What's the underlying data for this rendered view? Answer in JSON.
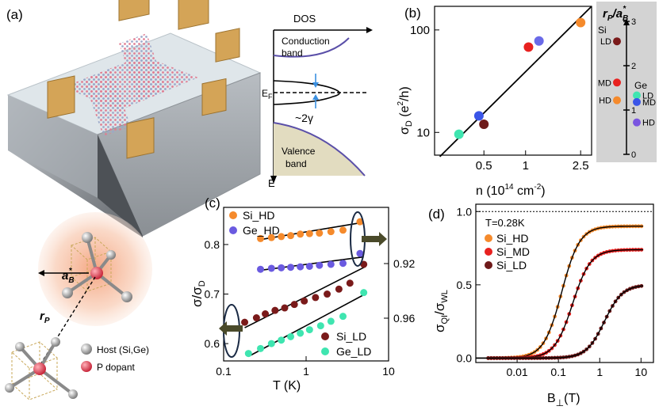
{
  "panel_labels": {
    "a": "(a)",
    "b": "(b)",
    "c": "(c)",
    "d": "(d)"
  },
  "dos": {
    "axis_dos": "DOS",
    "axis_e": "E",
    "conduction_1": "Conduction",
    "conduction_2": "band",
    "valence_1": "Valence",
    "valence_2": "band",
    "ef": "E",
    "ef_sub": "F",
    "gamma": "~2γ"
  },
  "crystal": {
    "ab_label": "a",
    "ab_sub": "B",
    "ab_sup": "*",
    "rp_label": "r",
    "rp_sub": "P",
    "legend_host": "Host (Si,Ge)",
    "legend_dopant": "P dopant"
  },
  "scale_bar": {
    "title_r": "r",
    "title_sub": "P",
    "title_slash": "/",
    "title_a": "a",
    "title_asub": "B",
    "title_asup": "*",
    "ticks": [
      "0",
      "1",
      "2",
      "3"
    ],
    "si_label": "Si",
    "ge_label": "Ge",
    "points": [
      {
        "label": "LD",
        "group": "Si",
        "value": 2.55,
        "color": "#7a1a1a"
      },
      {
        "label": "MD",
        "group": "Si",
        "value": 1.62,
        "color": "#e8211f"
      },
      {
        "label": "HD",
        "group": "Si",
        "value": 1.22,
        "color": "#f58a2c"
      },
      {
        "label": "LD",
        "group": "Ge",
        "value": 1.33,
        "color": "#3fe5b0"
      },
      {
        "label": "MD",
        "group": "Ge",
        "value": 1.18,
        "color": "#3a55e8"
      },
      {
        "label": "HD",
        "group": "Ge",
        "value": 0.72,
        "color": "#7a55e0"
      }
    ]
  },
  "chart_data": [
    {
      "panel": "b",
      "type": "scatter",
      "xlabel": "n (10",
      "xlabel_sup": "14",
      "xlabel_unit": " cm",
      "xlabel_unit_sup": "-2",
      "xlabel_close": ")",
      "ylabel": "σ",
      "ylabel_sub": "D",
      "ylabel_unit": " (e",
      "ylabel_unit_sup": "2",
      "ylabel_unit_close": "/h)",
      "x_ticks": [
        "0.5",
        "1",
        "2.5"
      ],
      "y_ticks": [
        "10",
        "100"
      ],
      "xlim": [
        0.22,
        3.0
      ],
      "ylim": [
        6,
        170
      ],
      "points": [
        {
          "x": 0.33,
          "y": 9.6,
          "color": "#3fe5b0"
        },
        {
          "x": 0.46,
          "y": 14.5,
          "color": "#3a55e8"
        },
        {
          "x": 0.5,
          "y": 12,
          "color": "#6e1a1a"
        },
        {
          "x": 1.05,
          "y": 68,
          "color": "#e8211f"
        },
        {
          "x": 1.25,
          "y": 78,
          "color": "#6a6ae8"
        },
        {
          "x": 2.5,
          "y": 118,
          "color": "#f58a2c"
        }
      ],
      "fit": [
        [
          0.24,
          5.8
        ],
        [
          3.0,
          170
        ]
      ]
    },
    {
      "panel": "c",
      "type": "scatter",
      "xlabel": "T (K)",
      "ylabel": "σ/σ",
      "ylabel_sub": "D",
      "x_ticks": [
        "0.1",
        "1",
        "10"
      ],
      "y_ticks": [
        "0.6",
        "0.7",
        "0.8"
      ],
      "y2_ticks": [
        "0.92",
        "0.96"
      ],
      "xlim": [
        0.1,
        10
      ],
      "ylim": [
        0.565,
        0.875
      ],
      "legend_top": [
        "Si_HD",
        "Ge_HD"
      ],
      "legend_bottom": [
        "Si_LD",
        "Ge_LD"
      ],
      "series": [
        {
          "name": "Si_HD",
          "color": "#f58a2c",
          "x": [
            0.28,
            0.38,
            0.5,
            0.65,
            0.85,
            1.1,
            1.45,
            2.0,
            2.8,
            4.5
          ],
          "y": [
            0.812,
            0.814,
            0.816,
            0.818,
            0.821,
            0.822,
            0.823,
            0.826,
            0.829,
            0.846
          ],
          "fit": [
            [
              0.28,
              0.81
            ],
            [
              5.0,
              0.845
            ]
          ]
        },
        {
          "name": "Ge_HD",
          "color": "#6a5ae0",
          "x": [
            0.28,
            0.38,
            0.5,
            0.65,
            0.85,
            1.1,
            1.45,
            2.0,
            2.8,
            4.5
          ],
          "y": [
            0.75,
            0.752,
            0.753,
            0.754,
            0.755,
            0.756,
            0.758,
            0.76,
            0.762,
            0.782
          ],
          "fit": [
            [
              0.28,
              0.748
            ],
            [
              5.0,
              0.775
            ]
          ]
        },
        {
          "name": "Si_LD",
          "color": "#7a1a1a",
          "x": [
            0.18,
            0.25,
            0.32,
            0.42,
            0.55,
            0.72,
            0.95,
            1.3,
            1.8,
            2.5,
            3.4,
            5.0
          ],
          "y": [
            0.643,
            0.652,
            0.66,
            0.667,
            0.672,
            0.679,
            0.686,
            0.693,
            0.7,
            0.71,
            0.722,
            0.76
          ],
          "fit": [
            [
              0.18,
              0.632
            ],
            [
              5.2,
              0.755
            ]
          ]
        },
        {
          "name": "Ge_LD",
          "color": "#3fe5b0",
          "x": [
            0.2,
            0.28,
            0.38,
            0.5,
            0.65,
            0.85,
            1.1,
            1.5,
            2.0,
            2.8,
            5.0
          ],
          "y": [
            0.58,
            0.59,
            0.6,
            0.607,
            0.614,
            0.621,
            0.628,
            0.636,
            0.645,
            0.655,
            0.703
          ],
          "fit": [
            [
              0.2,
              0.574
            ],
            [
              5.2,
              0.7
            ]
          ]
        }
      ]
    },
    {
      "panel": "d",
      "type": "line",
      "annotation": "T=0.28K",
      "xlabel": "B",
      "xlabel_sub": "⊥",
      "xlabel_unit": "(T)",
      "ylabel": "σ",
      "ylabel_sub": "QI",
      "ylabel_slash": "/σ",
      "ylabel_sub2": "WL",
      "x_ticks": [
        "0.01",
        "0.1",
        "1",
        "10"
      ],
      "y_ticks": [
        "0.0",
        "0.5",
        "1.0"
      ],
      "xlim": [
        0.001,
        20
      ],
      "ylim": [
        -0.03,
        1.05
      ],
      "reference_line": 1.0,
      "series": [
        {
          "name": "Si_HD",
          "color": "#f58a2c",
          "B50": 0.12,
          "sat": 0.9
        },
        {
          "name": "Si_MD",
          "color": "#e8211f",
          "B50": 0.22,
          "sat": 0.74
        },
        {
          "name": "Si_LD",
          "color": "#6e1a1a",
          "B50": 1.3,
          "sat": 0.5
        }
      ]
    }
  ]
}
